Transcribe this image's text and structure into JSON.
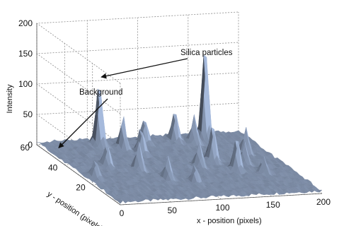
{
  "chart_data": {
    "type": "surface3d",
    "zlabel": "Intensity",
    "xlabel": "x - position (pixels)",
    "ylabel": "y - position (pixels)",
    "z_ticks": [
      "0",
      "50",
      "100",
      "150",
      "200"
    ],
    "x_ticks": [
      "0",
      "50",
      "100",
      "150",
      "200"
    ],
    "y_ticks": [
      "20",
      "40",
      "60"
    ],
    "xlim": [
      0,
      200
    ],
    "ylim": [
      0,
      60
    ],
    "zlim": [
      0,
      200
    ],
    "grid": true,
    "surface_color": "#7b8aa3",
    "peaks": [
      {
        "x": 55,
        "y": 55,
        "z": 110
      },
      {
        "x": 72,
        "y": 50,
        "z": 55
      },
      {
        "x": 83,
        "y": 45,
        "z": 45
      },
      {
        "x": 100,
        "y": 55,
        "z": 40
      },
      {
        "x": 130,
        "y": 55,
        "z": 50
      },
      {
        "x": 145,
        "y": 52,
        "z": 45
      },
      {
        "x": 160,
        "y": 55,
        "z": 165
      },
      {
        "x": 140,
        "y": 35,
        "z": 60
      },
      {
        "x": 120,
        "y": 30,
        "z": 40
      },
      {
        "x": 150,
        "y": 25,
        "z": 55
      },
      {
        "x": 165,
        "y": 30,
        "z": 35
      },
      {
        "x": 60,
        "y": 30,
        "z": 45
      },
      {
        "x": 35,
        "y": 35,
        "z": 35
      },
      {
        "x": 10,
        "y": 25,
        "z": 30
      },
      {
        "x": 75,
        "y": 20,
        "z": 35
      },
      {
        "x": 95,
        "y": 15,
        "z": 30
      },
      {
        "x": 180,
        "y": 40,
        "z": 40
      },
      {
        "x": 170,
        "y": 20,
        "z": 25
      }
    ],
    "annotations": [
      {
        "text": "Silica particles",
        "target_x": 55,
        "target_y": 55,
        "target_z": 110
      },
      {
        "text": "Background",
        "target_x": 10,
        "target_y": 52,
        "target_z": 5
      }
    ]
  }
}
